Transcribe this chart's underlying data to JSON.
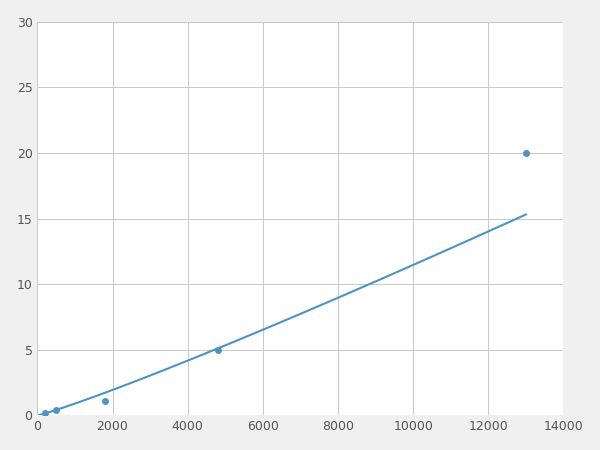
{
  "x_points": [
    200,
    500,
    1800,
    4800,
    13000
  ],
  "y_points": [
    0.2,
    0.4,
    1.1,
    5.0,
    20.0
  ],
  "line_color": "#4d94c0",
  "marker_color": "#4d94c0",
  "marker_size": 5,
  "line_width": 1.5,
  "xlim": [
    0,
    14000
  ],
  "ylim": [
    0,
    30
  ],
  "xticks": [
    0,
    2000,
    4000,
    6000,
    8000,
    10000,
    12000,
    14000
  ],
  "yticks": [
    0,
    5,
    10,
    15,
    20,
    25,
    30
  ],
  "grid_color": "#c8c8c8",
  "grid_linewidth": 0.7,
  "background_color": "#ffffff",
  "figure_facecolor": "#f0f0f0"
}
